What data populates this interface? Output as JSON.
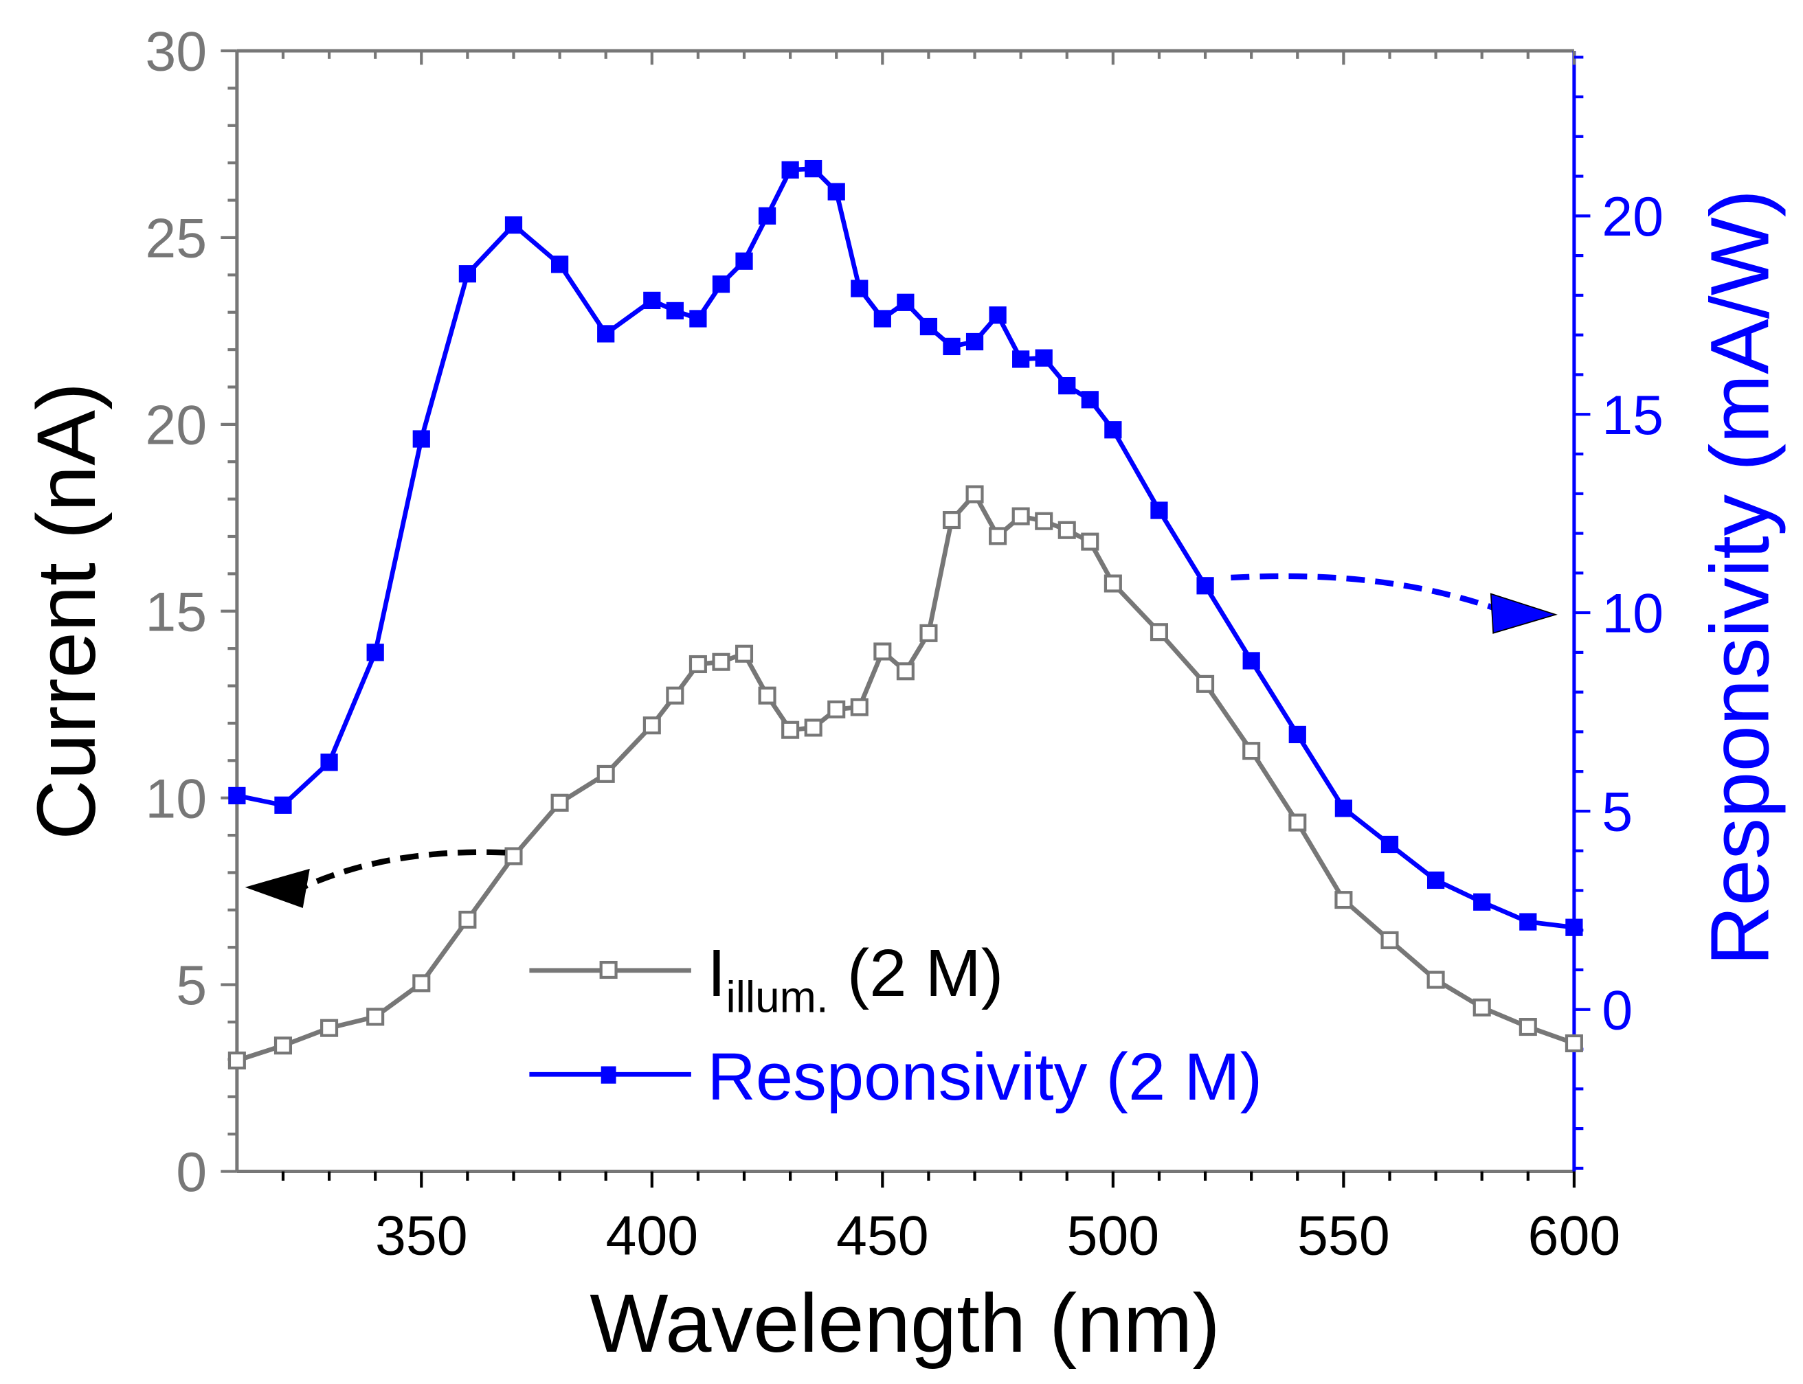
{
  "chart_data": {
    "type": "line",
    "xlabel": "Wavelength (nm)",
    "ylabel_left": "Current (nA)",
    "ylabel_right": "Responsivity (mA/W)",
    "xlim": [
      310,
      600
    ],
    "ylim_left": [
      0,
      30
    ],
    "ylim_right": [
      -4.08,
      24.16
    ],
    "x_ticks": [
      350,
      400,
      450,
      500,
      550,
      600
    ],
    "y_ticks_left": [
      0,
      5,
      10,
      15,
      20,
      25,
      30
    ],
    "y_ticks_right": [
      0,
      5,
      10,
      15,
      20
    ],
    "grid": false,
    "legend_placement": "bottom-center",
    "colors": {
      "current": "#777777",
      "responsivity": "#0000ff",
      "left_axis": "#777777",
      "right_axis": "#0000ff"
    },
    "legend": {
      "current_main": "I",
      "current_sub": "illum.",
      "current_suffix": " (2 M)",
      "responsivity": "Responsivity (2 M)"
    },
    "x": [
      310,
      320,
      330,
      340,
      350,
      360,
      370,
      380,
      390,
      400,
      405,
      410,
      415,
      420,
      425,
      430,
      435,
      440,
      445,
      450,
      455,
      460,
      465,
      470,
      475,
      480,
      485,
      490,
      495,
      500,
      510,
      520,
      530,
      540,
      550,
      560,
      570,
      580,
      590,
      600
    ],
    "series": [
      {
        "name": "I_illum. (2 M)",
        "axis": "left",
        "marker": "open-square",
        "values": [
          2.97,
          3.37,
          3.84,
          4.14,
          5.04,
          6.74,
          8.44,
          9.87,
          10.64,
          11.94,
          12.74,
          13.58,
          13.64,
          13.86,
          12.74,
          11.82,
          11.88,
          12.37,
          12.43,
          13.92,
          13.39,
          14.41,
          17.44,
          18.13,
          17.01,
          17.54,
          17.41,
          17.17,
          16.86,
          15.74,
          14.44,
          13.05,
          11.26,
          9.34,
          7.27,
          6.19,
          5.13,
          4.39,
          3.87,
          3.43
        ]
      },
      {
        "name": "Responsivity (2 M)",
        "axis": "right",
        "marker": "filled-square",
        "values": [
          5.39,
          5.15,
          6.23,
          9.0,
          14.38,
          18.54,
          19.77,
          18.78,
          17.03,
          17.87,
          17.61,
          17.41,
          18.28,
          18.86,
          20.0,
          21.16,
          21.19,
          20.61,
          18.17,
          17.41,
          17.82,
          17.21,
          16.71,
          16.83,
          17.5,
          16.39,
          16.42,
          15.72,
          15.37,
          14.61,
          12.58,
          10.68,
          8.79,
          6.93,
          5.07,
          4.16,
          3.26,
          2.71,
          2.21,
          2.07
        ]
      }
    ]
  }
}
